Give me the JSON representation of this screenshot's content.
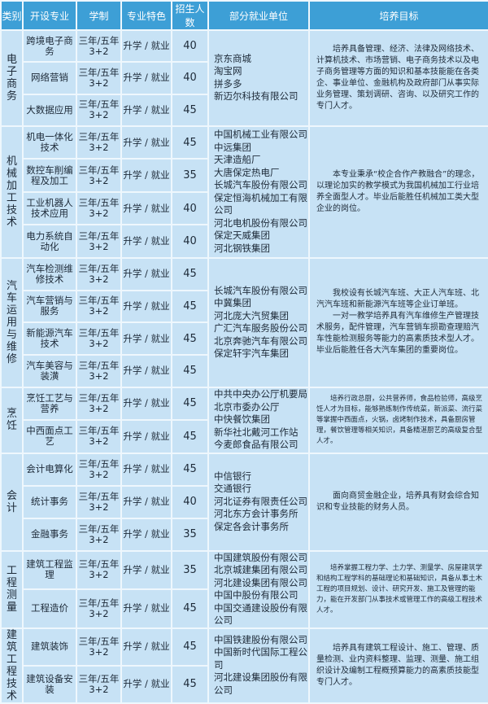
{
  "headers": [
    "类别",
    "开设专业",
    "学制",
    "专业特色",
    "招生人数",
    "部分就业单位",
    "培养目标"
  ],
  "colors": {
    "header_bg": "#3d9fd6",
    "cell_bg": "#c7e2f5",
    "border": "#eef7fd"
  },
  "groups": [
    {
      "category": "电子商务",
      "goal_small": false,
      "majors": [
        {
          "name": "跨境电子商务",
          "system": [
            "三年/五年",
            "3+2"
          ],
          "feature": "升学 / 就业",
          "count": "40"
        },
        {
          "name": "网络营销",
          "system": [
            "三年/五年",
            "3+2"
          ],
          "feature": "升学 / 就业",
          "count": "40"
        },
        {
          "name": "大数据应用",
          "system": [
            "三年/五年",
            "3+2"
          ],
          "feature": "升学 / 就业",
          "count": "45"
        }
      ],
      "employers": [
        "京东商城",
        "淘宝网",
        "拼多多",
        "新迈尔科技有限公司"
      ],
      "goal": [
        "培养具备管理、经济、法律及网络技术、计算机技术、市场营销、电子商务技术以及电子商务管理等方面的知识和基本技能能在各类企、事业单位、金融机构及政府部门从事实际业务管理、策划调研、咨询、以及研究工作的专门人才。"
      ]
    },
    {
      "category": "机械加工技术",
      "goal_small": false,
      "majors": [
        {
          "name": "机电一体化技术",
          "system": [
            "三年/五年",
            "3+2"
          ],
          "feature": "升学 / 就业",
          "count": "45"
        },
        {
          "name": "数控车削编程及加工",
          "system": [
            "三年/五年",
            "3+2"
          ],
          "feature": "升学 / 就业",
          "count": "35"
        },
        {
          "name": "工业机器人技术应用",
          "system": [
            "三年/五年",
            "3+2"
          ],
          "feature": "升学 / 就业",
          "count": "40"
        },
        {
          "name": "电力系统自动化",
          "system": [
            "三年/五年",
            "3+2"
          ],
          "feature": "升学 / 就业",
          "count": "40"
        }
      ],
      "employers": [
        "中国机械工业有限公司",
        "中远集团",
        "天津造船厂",
        "大唐保定热电厂",
        "长城汽车股份有限公司",
        "保定恒海机械加工有限公司",
        "河北电机股份有限公司",
        "保定天威集团",
        "河北钢铁集团"
      ],
      "goal": [
        "本专业秉承“校企合作产教融合”的理念，以理论加实的教学模式为我国机械加工行业培养全面型人才。毕业后能胜任机械加工类大型企业的岗位。"
      ]
    },
    {
      "category": "汽车运用与维修",
      "goal_small": false,
      "majors": [
        {
          "name": "汽车检测维修技术",
          "system": [
            "三年/五年",
            "3+2"
          ],
          "feature": "升学 / 就业",
          "count": "45"
        },
        {
          "name": "汽车营销与服务",
          "system": [
            "三年/五年",
            "3+2"
          ],
          "feature": "升学 / 就业",
          "count": "45"
        },
        {
          "name": "新能源汽车技术",
          "system": [
            "三年/五年",
            "3+2"
          ],
          "feature": "升学 / 就业",
          "count": "45"
        },
        {
          "name": "汽车美容与装潢",
          "system": [
            "三年/五年",
            "3+2"
          ],
          "feature": "升学 / 就业",
          "count": "45"
        }
      ],
      "employers": [
        "长城汽车股份有限公司",
        "中冀集团",
        "河北庞大汽贸集团",
        "广汇汽车服务股份公司",
        "北京奔驰汽车有限公司",
        "保定轩宇汽车集团"
      ],
      "goal": [
        "我校设有长城汽车班、大正人汽车班、北汽汽车班和新能源汽车班等企业订单班。",
        "一对一教学培养具有汽车维修生产管理技术服务，配件管理，汽车营销车损勘查理赔汽车性能检测服务等能力的高素质技术型人才。毕业后能胜任各大汽车集团的重要岗位。"
      ]
    },
    {
      "category": "烹饪",
      "goal_small": true,
      "majors": [
        {
          "name": "烹饪工艺与营养",
          "system": [
            "三年/五年",
            "3+2"
          ],
          "feature": "升学 / 就业",
          "count": "45"
        },
        {
          "name": "中西面点工艺",
          "system": [
            "三年/五年",
            "3+2"
          ],
          "feature": "升学 / 就业",
          "count": "45"
        }
      ],
      "employers": [
        "中共中央办公厅机要局",
        "北京市委办公厅",
        "中快餐饮集团",
        "新华社北戴河工作站",
        "今麦郎食品有限公司"
      ],
      "goal": [
        "培养行政总厨，公共营养师，食品检验师，高级烹饪人才为目标，能够熟练制作传统菜，新派菜、流行菜等掌握中西面点，火锅，卤烤制作技术，具备厨房管理，餐饮管理等相关知识，具备精湛厨艺的高级复合型人才。"
      ]
    },
    {
      "category": "会计",
      "goal_small": false,
      "majors": [
        {
          "name": "会计电算化",
          "system": [
            "三年/五年",
            "3+2"
          ],
          "feature": "升学 / 就业",
          "count": "45"
        },
        {
          "name": "统计事务",
          "system": [
            "三年/五年",
            "3+2"
          ],
          "feature": "升学 / 就业",
          "count": "40"
        },
        {
          "name": "金融事务",
          "system": [
            "三年/五年",
            "3+2"
          ],
          "feature": "升学 / 就业",
          "count": "35"
        }
      ],
      "employers": [
        "中信银行",
        "交通银行",
        "河北证券有限责任公司",
        "河北东方会计事务所",
        "保定各会计事务所"
      ],
      "goal": [
        "面向商贸金融企业，培养具有财会综合知识和专业技能的财务人员。"
      ]
    },
    {
      "category": "工程测量",
      "goal_small": true,
      "majors": [
        {
          "name": "建筑工程监理",
          "system": [
            "三年/五年",
            "3+2"
          ],
          "feature": "升学 / 就业",
          "count": "35"
        },
        {
          "name": "工程造价",
          "system": [
            "三年/五年",
            "3+2"
          ],
          "feature": "升学 / 就业",
          "count": "45"
        }
      ],
      "employers": [
        "中国建筑股份有限公司",
        "北京城建集团有限公司",
        "河北建设集团有限公司",
        "中国中股份有限公司",
        "中国交通建设股份有限公司"
      ],
      "goal": [
        "培养掌握工程力学、土力学、测量学、房屋建筑学和结构工程学科的基础理论和基础知识，具备从事土木工程的项目规划、设计、研究开发、施工及管理的能力，能在开发部门从事技术或管理工作的高级工程技术人才。"
      ]
    },
    {
      "category": "建筑工程技术",
      "goal_small": false,
      "majors": [
        {
          "name": "建筑装饰",
          "system": [
            "三年/五年",
            "3+2"
          ],
          "feature": "升学 / 就业",
          "count": "45"
        },
        {
          "name": "建筑设备安装",
          "system": [
            "三年/五年",
            "3+2"
          ],
          "feature": "升学 / 就业",
          "count": "45"
        }
      ],
      "employers": [
        "中国铁建股份有限公司",
        "中国新时代国际工程公司",
        "河北建设集团股份有限公司"
      ],
      "goal": [
        "培养具有建筑工程设计、施工、管理、质量检测、业内资料整理、监理、测量、施工组织设计及编制工程概预算能力的高素质技能型专门人才。"
      ]
    }
  ]
}
